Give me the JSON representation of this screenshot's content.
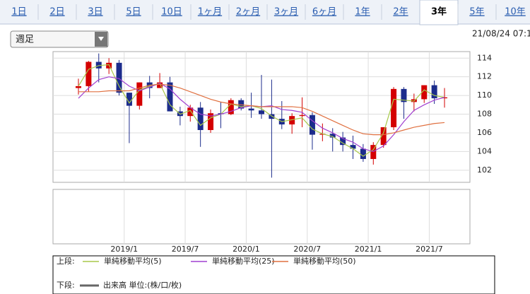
{
  "tabs": [
    {
      "label": "1日",
      "selected": false
    },
    {
      "label": "2日",
      "selected": false
    },
    {
      "label": "3日",
      "selected": false
    },
    {
      "label": "5日",
      "selected": false
    },
    {
      "label": "10日",
      "selected": false
    },
    {
      "label": "1ヶ月",
      "selected": false
    },
    {
      "label": "2ヶ月",
      "selected": false
    },
    {
      "label": "3ヶ月",
      "selected": false
    },
    {
      "label": "6ヶ月",
      "selected": false
    },
    {
      "label": "1年",
      "selected": false
    },
    {
      "label": "2年",
      "selected": false
    },
    {
      "label": "3年",
      "selected": true
    },
    {
      "label": "5年",
      "selected": false
    },
    {
      "label": "10年",
      "selected": false
    }
  ],
  "period_select": "週足",
  "timestamp": "21/08/24 07:1",
  "chart_data": {
    "type": "candlestick",
    "x": [
      "2018/8",
      "2018/9",
      "2018/10",
      "2018/11",
      "2018/12",
      "2019/1",
      "2019/2",
      "2019/3",
      "2019/4",
      "2019/5",
      "2019/6",
      "2019/7",
      "2019/8",
      "2019/9",
      "2019/10",
      "2019/11",
      "2019/12",
      "2020/1",
      "2020/2",
      "2020/3",
      "2020/4",
      "2020/5",
      "2020/6",
      "2020/7",
      "2020/8",
      "2020/9",
      "2020/10",
      "2020/11",
      "2020/12",
      "2021/1",
      "2021/2",
      "2021/3",
      "2021/4",
      "2021/5",
      "2021/6",
      "2021/7",
      "2021/8"
    ],
    "open": [
      110.8,
      111.0,
      113.6,
      112.9,
      113.5,
      110.3,
      108.9,
      111.4,
      110.8,
      111.4,
      108.3,
      107.8,
      108.7,
      106.3,
      108.1,
      108.0,
      109.5,
      108.6,
      108.4,
      108.0,
      107.5,
      106.9,
      107.8,
      107.9,
      105.8,
      105.9,
      105.5,
      104.7,
      104.3,
      103.2,
      104.7,
      106.6,
      110.7,
      109.3,
      109.6,
      111.1,
      109.7
    ],
    "high": [
      111.8,
      113.7,
      114.5,
      114.0,
      113.8,
      110.3,
      111.4,
      112.1,
      112.4,
      112.0,
      108.8,
      109.0,
      109.3,
      108.5,
      109.3,
      109.7,
      109.7,
      110.3,
      112.2,
      111.7,
      109.4,
      108.1,
      109.8,
      108.2,
      107.0,
      106.5,
      106.1,
      105.7,
      104.8,
      105.0,
      106.6,
      110.9,
      110.9,
      110.2,
      111.1,
      111.6,
      110.8
    ],
    "low": [
      110.1,
      110.4,
      111.4,
      112.3,
      110.0,
      104.9,
      108.5,
      109.7,
      110.8,
      108.3,
      106.8,
      107.2,
      104.5,
      106.0,
      106.5,
      107.9,
      108.4,
      107.6,
      107.5,
      101.2,
      106.4,
      105.9,
      106.6,
      104.2,
      105.1,
      104.0,
      104.0,
      103.2,
      102.9,
      102.6,
      104.4,
      106.3,
      107.5,
      108.3,
      109.2,
      109.1,
      108.7
    ],
    "close": [
      111.0,
      113.6,
      112.9,
      113.5,
      110.3,
      108.9,
      111.4,
      110.8,
      111.4,
      108.3,
      107.8,
      108.7,
      106.3,
      108.1,
      108.0,
      109.5,
      108.6,
      108.4,
      108.0,
      107.5,
      106.9,
      107.8,
      107.9,
      105.8,
      105.9,
      105.5,
      104.7,
      104.3,
      103.2,
      104.7,
      106.6,
      110.7,
      109.3,
      109.6,
      111.1,
      109.7,
      109.8
    ],
    "up_color": "#d40000",
    "down_color": "#1c2c8c",
    "series": [
      {
        "name": "単純移動平均(5)",
        "color": "#a8c84a",
        "values": [
          111.0,
          112.8,
          113.2,
          113.3,
          111.0,
          109.2,
          110.6,
          111.0,
          111.3,
          109.0,
          108.0,
          108.4,
          106.8,
          107.6,
          108.0,
          109.1,
          108.8,
          108.9,
          108.6,
          107.8,
          107.2,
          107.4,
          107.6,
          106.4,
          105.9,
          105.6,
          104.9,
          104.3,
          103.5,
          104.2,
          106.0,
          109.6,
          109.5,
          109.4,
          110.6,
          110.0,
          109.8
        ]
      },
      {
        "name": "単純移動平均(25)",
        "color": "#a040d0",
        "values": [
          109.7,
          110.8,
          111.7,
          112.0,
          111.8,
          111.0,
          110.5,
          110.9,
          111.3,
          110.7,
          109.6,
          108.7,
          108.0,
          107.8,
          108.0,
          108.3,
          108.7,
          108.9,
          108.8,
          108.9,
          108.5,
          108.4,
          108.2,
          107.3,
          106.5,
          106.0,
          105.4,
          105.0,
          104.3,
          104.0,
          104.6,
          105.8,
          107.2,
          108.4,
          109.0,
          109.5,
          109.8
        ]
      },
      {
        "name": "単純移動平均(50)",
        "color": "#e07040",
        "values": [
          110.4,
          110.4,
          110.4,
          110.5,
          110.5,
          110.5,
          110.8,
          111.1,
          111.2,
          111.1,
          110.8,
          110.4,
          110.0,
          109.6,
          109.3,
          109.1,
          109.0,
          108.9,
          108.8,
          108.8,
          108.8,
          108.8,
          108.7,
          108.3,
          107.8,
          107.3,
          106.8,
          106.3,
          105.9,
          105.8,
          105.8,
          106.0,
          106.3,
          106.6,
          106.8,
          107.0,
          107.1
        ]
      }
    ],
    "xlim": [
      "2018/6",
      "2021/11"
    ],
    "xticks": [
      "2019/1",
      "2019/7",
      "2020/1",
      "2020/7",
      "2021/1",
      "2021/7"
    ],
    "ylim": [
      100.7,
      114.7
    ],
    "yticks": [
      102,
      104,
      106,
      108,
      110,
      112,
      114
    ],
    "grid": true,
    "legend": {
      "upper_label": "上段:",
      "lower_label": "下段:",
      "volume_label": "出来高 単位:(株/口/枚)",
      "volume_color": "#666666"
    }
  }
}
